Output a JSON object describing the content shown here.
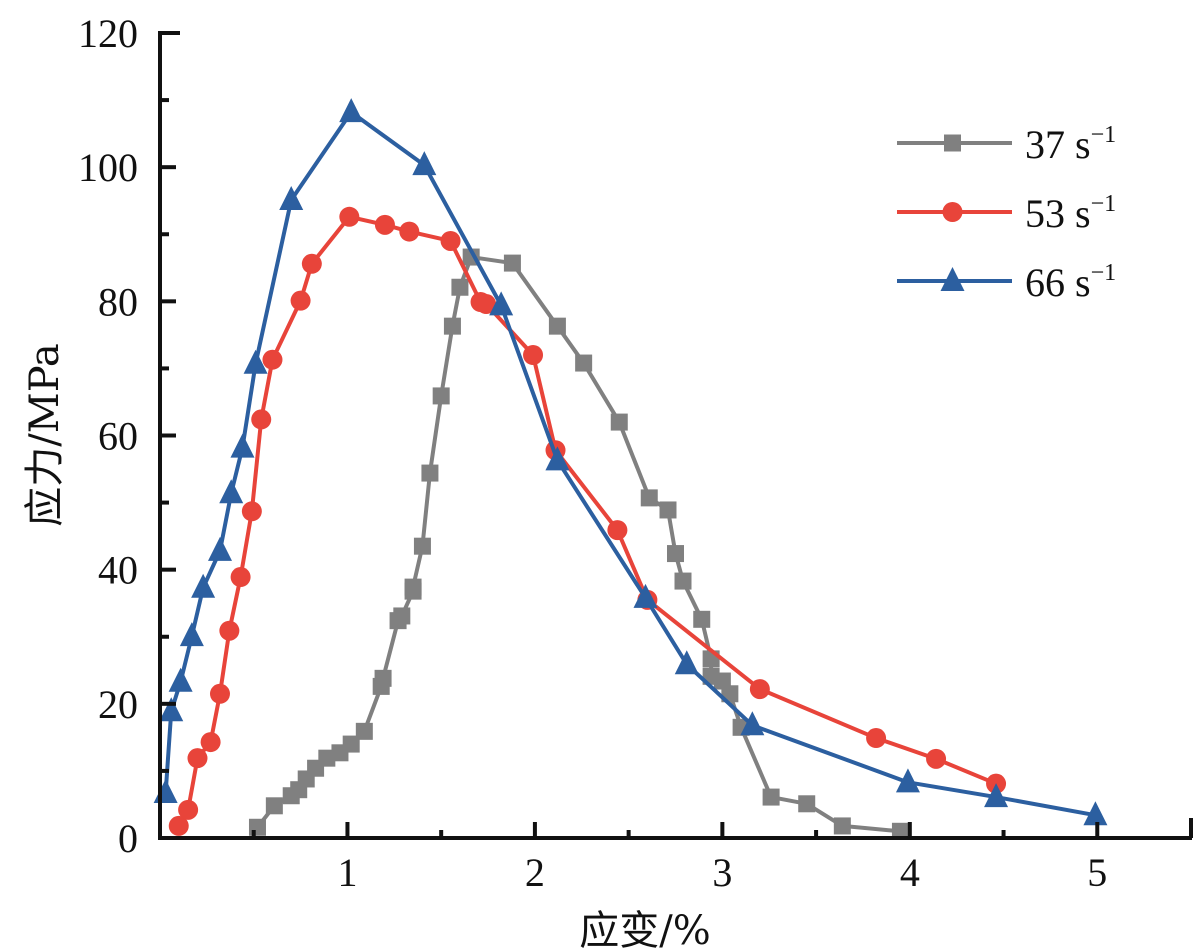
{
  "chart_data": {
    "type": "line",
    "title": "",
    "xlabel": "应变/%",
    "ylabel": "应力/MPa",
    "xlim": [
      0,
      5.5
    ],
    "ylim": [
      0,
      120
    ],
    "x_ticks": [
      1,
      2,
      3,
      4,
      5
    ],
    "x_tick_labels": [
      "1",
      "2",
      "3",
      "4",
      "5"
    ],
    "x_minor_ticks": [
      0.5,
      1.5,
      2.5,
      3.5,
      4.5,
      5.5
    ],
    "y_ticks": [
      0,
      20,
      40,
      60,
      80,
      100,
      120
    ],
    "y_tick_labels": [
      "0",
      "20",
      "40",
      "60",
      "80",
      "100",
      "120"
    ],
    "y_minor_ticks": [
      10,
      30,
      50,
      70,
      90,
      110
    ],
    "grid": false,
    "legend_position": "top-right",
    "series": [
      {
        "name": "37 s⁻¹",
        "label_main": "37 s",
        "label_sup": "−1",
        "color": "#808080",
        "marker": "square",
        "x": [
          0.52,
          0.61,
          0.7,
          0.74,
          0.78,
          0.83,
          0.89,
          0.96,
          1.02,
          1.09,
          1.18,
          1.19,
          1.27,
          1.29,
          1.35,
          1.35,
          1.4,
          1.44,
          1.5,
          1.56,
          1.6,
          1.66,
          1.88,
          2.12,
          2.26,
          2.45,
          2.61,
          2.71,
          2.75,
          2.79,
          2.89,
          2.94,
          2.94,
          3.0,
          3.04,
          3.1,
          3.26,
          3.45,
          3.64,
          3.95
        ],
        "y": [
          1.6,
          4.8,
          6.3,
          7.2,
          8.8,
          10.4,
          11.9,
          12.7,
          14.0,
          15.9,
          22.6,
          23.8,
          32.4,
          33.1,
          36.8,
          37.4,
          43.5,
          54.4,
          65.9,
          76.3,
          82.1,
          86.6,
          85.7,
          76.3,
          70.8,
          62.0,
          50.7,
          48.9,
          42.4,
          38.3,
          32.6,
          26.7,
          24.1,
          23.4,
          21.5,
          16.5,
          6.1,
          5.1,
          1.8,
          1.0
        ]
      },
      {
        "name": "53 s⁻¹",
        "label_main": "53 s",
        "label_sup": "−1",
        "color": "#e8443a",
        "marker": "circle",
        "x": [
          0.1,
          0.15,
          0.2,
          0.27,
          0.32,
          0.37,
          0.43,
          0.49,
          0.54,
          0.6,
          0.75,
          0.81,
          1.01,
          1.2,
          1.33,
          1.55,
          1.71,
          1.74,
          1.99,
          2.11,
          2.44,
          2.6,
          3.2,
          3.82,
          4.14,
          4.46
        ],
        "y": [
          1.8,
          4.2,
          11.9,
          14.3,
          21.5,
          30.9,
          38.9,
          48.7,
          62.4,
          71.3,
          80.1,
          85.6,
          92.6,
          91.4,
          90.4,
          89.0,
          79.9,
          79.6,
          72.0,
          57.8,
          45.9,
          35.5,
          22.2,
          14.9,
          11.8,
          8.1
        ]
      },
      {
        "name": "66 s⁻¹",
        "label_main": "66 s",
        "label_sup": "−1",
        "color": "#2c5fa0",
        "marker": "triangle",
        "x": [
          0.03,
          0.06,
          0.11,
          0.17,
          0.23,
          0.32,
          0.38,
          0.44,
          0.51,
          0.7,
          1.02,
          1.41,
          1.82,
          2.12,
          2.59,
          2.81,
          3.16,
          3.99,
          4.46,
          4.99
        ],
        "y": [
          6.7,
          18.9,
          23.3,
          30.1,
          37.3,
          42.8,
          51.4,
          58.2,
          70.7,
          95.1,
          108.2,
          100.3,
          79.4,
          56.3,
          35.8,
          25.9,
          16.8,
          8.3,
          6.1,
          3.4
        ]
      }
    ]
  }
}
